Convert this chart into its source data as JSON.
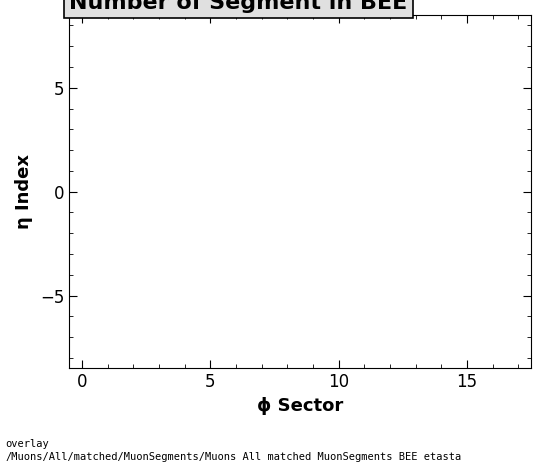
{
  "title": "Number of Segment in BEE",
  "xlabel": "ϕ Sector",
  "ylabel": "η Index",
  "xlim": [
    -0.5,
    17.5
  ],
  "ylim": [
    -8.5,
    8.5
  ],
  "xticks": [
    0,
    5,
    10,
    15
  ],
  "yticks": [
    -5,
    0,
    5
  ],
  "background_color": "#ffffff",
  "plot_bg_color": "#ffffff",
  "title_fontsize": 16,
  "axis_label_fontsize": 13,
  "tick_fontsize": 12,
  "footer_text": "overlay\n/Muons/All/matched/MuonSegments/Muons_All_matched_MuonSegments_BEE_etasta",
  "footer_fontsize": 7.5,
  "title_box_facecolor": "#e0e0e0",
  "title_box_edgecolor": "#000000"
}
